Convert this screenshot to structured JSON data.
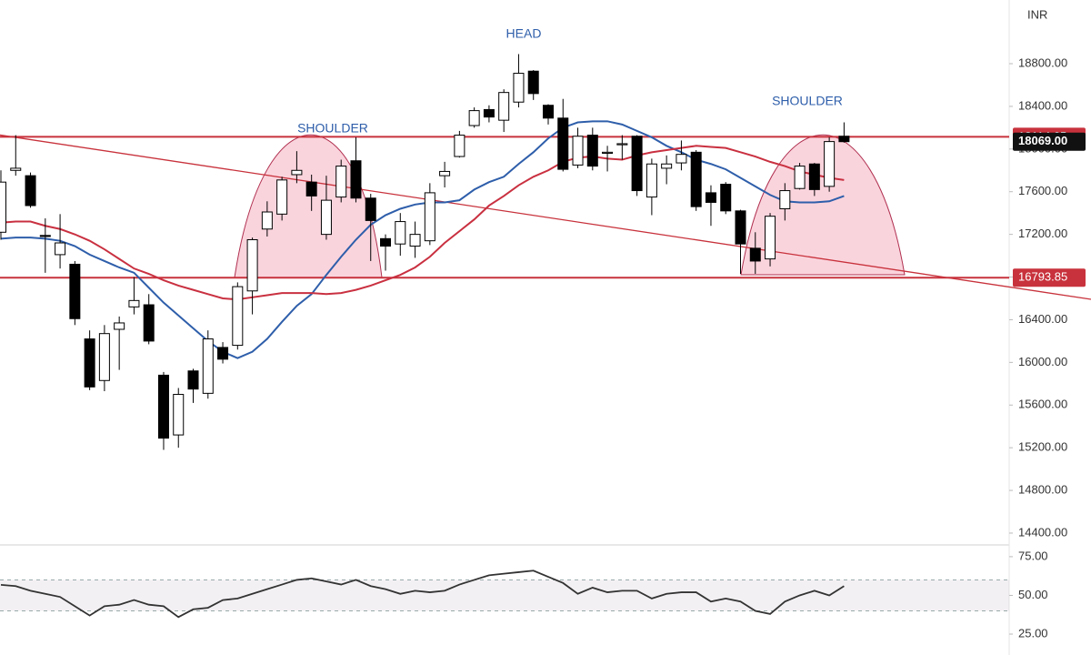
{
  "chart_data": [
    {
      "type": "candlestick",
      "currency": "INR",
      "open": [
        17220,
        17800,
        17750,
        17190,
        17010,
        16920,
        16220,
        15830,
        16310,
        16520,
        16540,
        15880,
        15320,
        15920,
        15710,
        16140,
        16160,
        16670,
        17250,
        17390,
        17760,
        17690,
        17200,
        17550,
        17890,
        17540,
        17160,
        17110,
        17090,
        17140,
        17750,
        17930,
        18220,
        18370,
        18270,
        18440,
        18730,
        18410,
        18290,
        17850,
        18130,
        17960,
        18040,
        18120,
        17550,
        17820,
        17870,
        17970,
        17590,
        17670,
        17420,
        17070,
        16970,
        17440,
        17630,
        17860,
        17650,
        18120
      ],
      "high": [
        17800,
        18130,
        17780,
        17350,
        17390,
        16950,
        16300,
        16350,
        16430,
        16800,
        16640,
        15910,
        15760,
        15940,
        16300,
        16190,
        16750,
        17170,
        17510,
        17740,
        17980,
        17760,
        17750,
        17900,
        18110,
        17580,
        17200,
        17400,
        17320,
        17680,
        17880,
        18170,
        18390,
        18410,
        18560,
        18890,
        18740,
        18420,
        18470,
        18200,
        18200,
        18030,
        18130,
        18130,
        17910,
        17940,
        18080,
        17990,
        17660,
        17690,
        17430,
        17220,
        17400,
        17680,
        17870,
        17870,
        18110,
        18250
      ],
      "low": [
        17150,
        17750,
        17450,
        16840,
        16880,
        16350,
        15740,
        15730,
        15930,
        16450,
        16170,
        15180,
        15200,
        15620,
        15660,
        15990,
        16120,
        16450,
        17180,
        17330,
        17680,
        17420,
        17150,
        17500,
        17500,
        16950,
        16860,
        17000,
        16980,
        17100,
        17640,
        17920,
        18200,
        18250,
        18160,
        18390,
        18460,
        18230,
        17790,
        17820,
        17800,
        17790,
        17900,
        17560,
        17380,
        17670,
        17800,
        17420,
        17280,
        17390,
        16830,
        16830,
        16900,
        17330,
        17620,
        17560,
        17600,
        18060
      ],
      "close": [
        17690,
        17820,
        17470,
        17180,
        17120,
        16410,
        15770,
        16270,
        16370,
        16580,
        16200,
        15290,
        15700,
        15750,
        16220,
        16030,
        16710,
        17150,
        17410,
        17710,
        17800,
        17560,
        17520,
        17840,
        17540,
        17330,
        17090,
        17320,
        17200,
        17590,
        17790,
        18130,
        18360,
        18300,
        18530,
        18710,
        18520,
        18290,
        17810,
        18120,
        17840,
        17970,
        18050,
        17610,
        17860,
        17860,
        17950,
        17460,
        17500,
        17420,
        17110,
        16950,
        17370,
        17610,
        17840,
        17620,
        18070,
        18069
      ],
      "close_label": "18069.00",
      "up_color": "#ffffff",
      "down_color": "#000000",
      "moving_averages": [
        {
          "color": "#2e5eaa",
          "values": [
            17160,
            17170,
            17170,
            17160,
            17140,
            17090,
            17010,
            16950,
            16890,
            16840,
            16700,
            16560,
            16440,
            16320,
            16200,
            16100,
            16040,
            16100,
            16220,
            16380,
            16530,
            16640,
            16820,
            16990,
            17150,
            17290,
            17380,
            17440,
            17480,
            17500,
            17500,
            17520,
            17620,
            17690,
            17740,
            17860,
            17970,
            18100,
            18200,
            18250,
            18260,
            18260,
            18230,
            18170,
            18110,
            18030,
            17970,
            17900,
            17860,
            17810,
            17730,
            17650,
            17570,
            17510,
            17500,
            17500,
            17510,
            17560
          ]
        },
        {
          "color": "#c93040",
          "values": [
            17310,
            17320,
            17320,
            17280,
            17250,
            17200,
            17140,
            17060,
            16970,
            16880,
            16830,
            16770,
            16720,
            16680,
            16640,
            16600,
            16590,
            16610,
            16630,
            16650,
            16650,
            16650,
            16640,
            16650,
            16680,
            16720,
            16770,
            16820,
            16890,
            16990,
            17120,
            17230,
            17340,
            17470,
            17560,
            17660,
            17740,
            17800,
            17880,
            17920,
            17930,
            17910,
            17900,
            17940,
            17970,
            17990,
            18010,
            18030,
            18020,
            18010,
            17970,
            17930,
            17880,
            17840,
            17790,
            17760,
            17730,
            17710
          ]
        }
      ],
      "levels": [
        18114.65,
        16793.85
      ],
      "level_color": "#c8323c",
      "trendline": [
        18130,
        16940
      ],
      "annotations": [
        "HEAD",
        "SHOULDER",
        "SHOULDER"
      ],
      "ylim": [
        14306,
        19397
      ],
      "yticks": [
        {
          "value": 14400,
          "label": "14400.00"
        },
        {
          "value": 14800,
          "label": "14800.00"
        },
        {
          "value": 15200,
          "label": "15200.00"
        },
        {
          "value": 15600,
          "label": "15600.00"
        },
        {
          "value": 16000,
          "label": "16000.00"
        },
        {
          "value": 16400,
          "label": "16400.00"
        },
        {
          "value": 16800,
          "label": "16800.00"
        },
        {
          "value": 17200,
          "label": "17200.00"
        },
        {
          "value": 17600,
          "label": "17600.00"
        },
        {
          "value": 18000,
          "label": "18000.00"
        },
        {
          "value": 18400,
          "label": "18400.00"
        },
        {
          "value": 18800,
          "label": "18800.00"
        }
      ]
    },
    {
      "type": "line",
      "values": [
        56.8,
        56,
        53,
        51,
        49,
        43,
        37,
        43,
        44,
        47,
        44,
        43,
        36,
        41,
        42,
        47,
        48,
        51,
        54,
        57,
        60,
        61,
        59,
        57,
        60,
        56,
        54,
        51,
        53,
        52,
        53,
        57,
        60,
        63,
        64,
        65,
        66,
        62,
        58,
        51,
        55,
        52,
        53,
        53,
        48,
        51,
        52,
        52,
        46,
        48,
        46,
        40,
        38,
        46,
        50,
        53,
        50,
        56
      ],
      "color": "#333333",
      "levels": [
        40,
        60
      ],
      "ylim": [
        11.5,
        82
      ],
      "yticks": [
        {
          "value": 25,
          "label": "25.00"
        },
        {
          "value": 50,
          "label": "50.00"
        },
        {
          "value": 75,
          "label": "75.00"
        }
      ]
    }
  ]
}
